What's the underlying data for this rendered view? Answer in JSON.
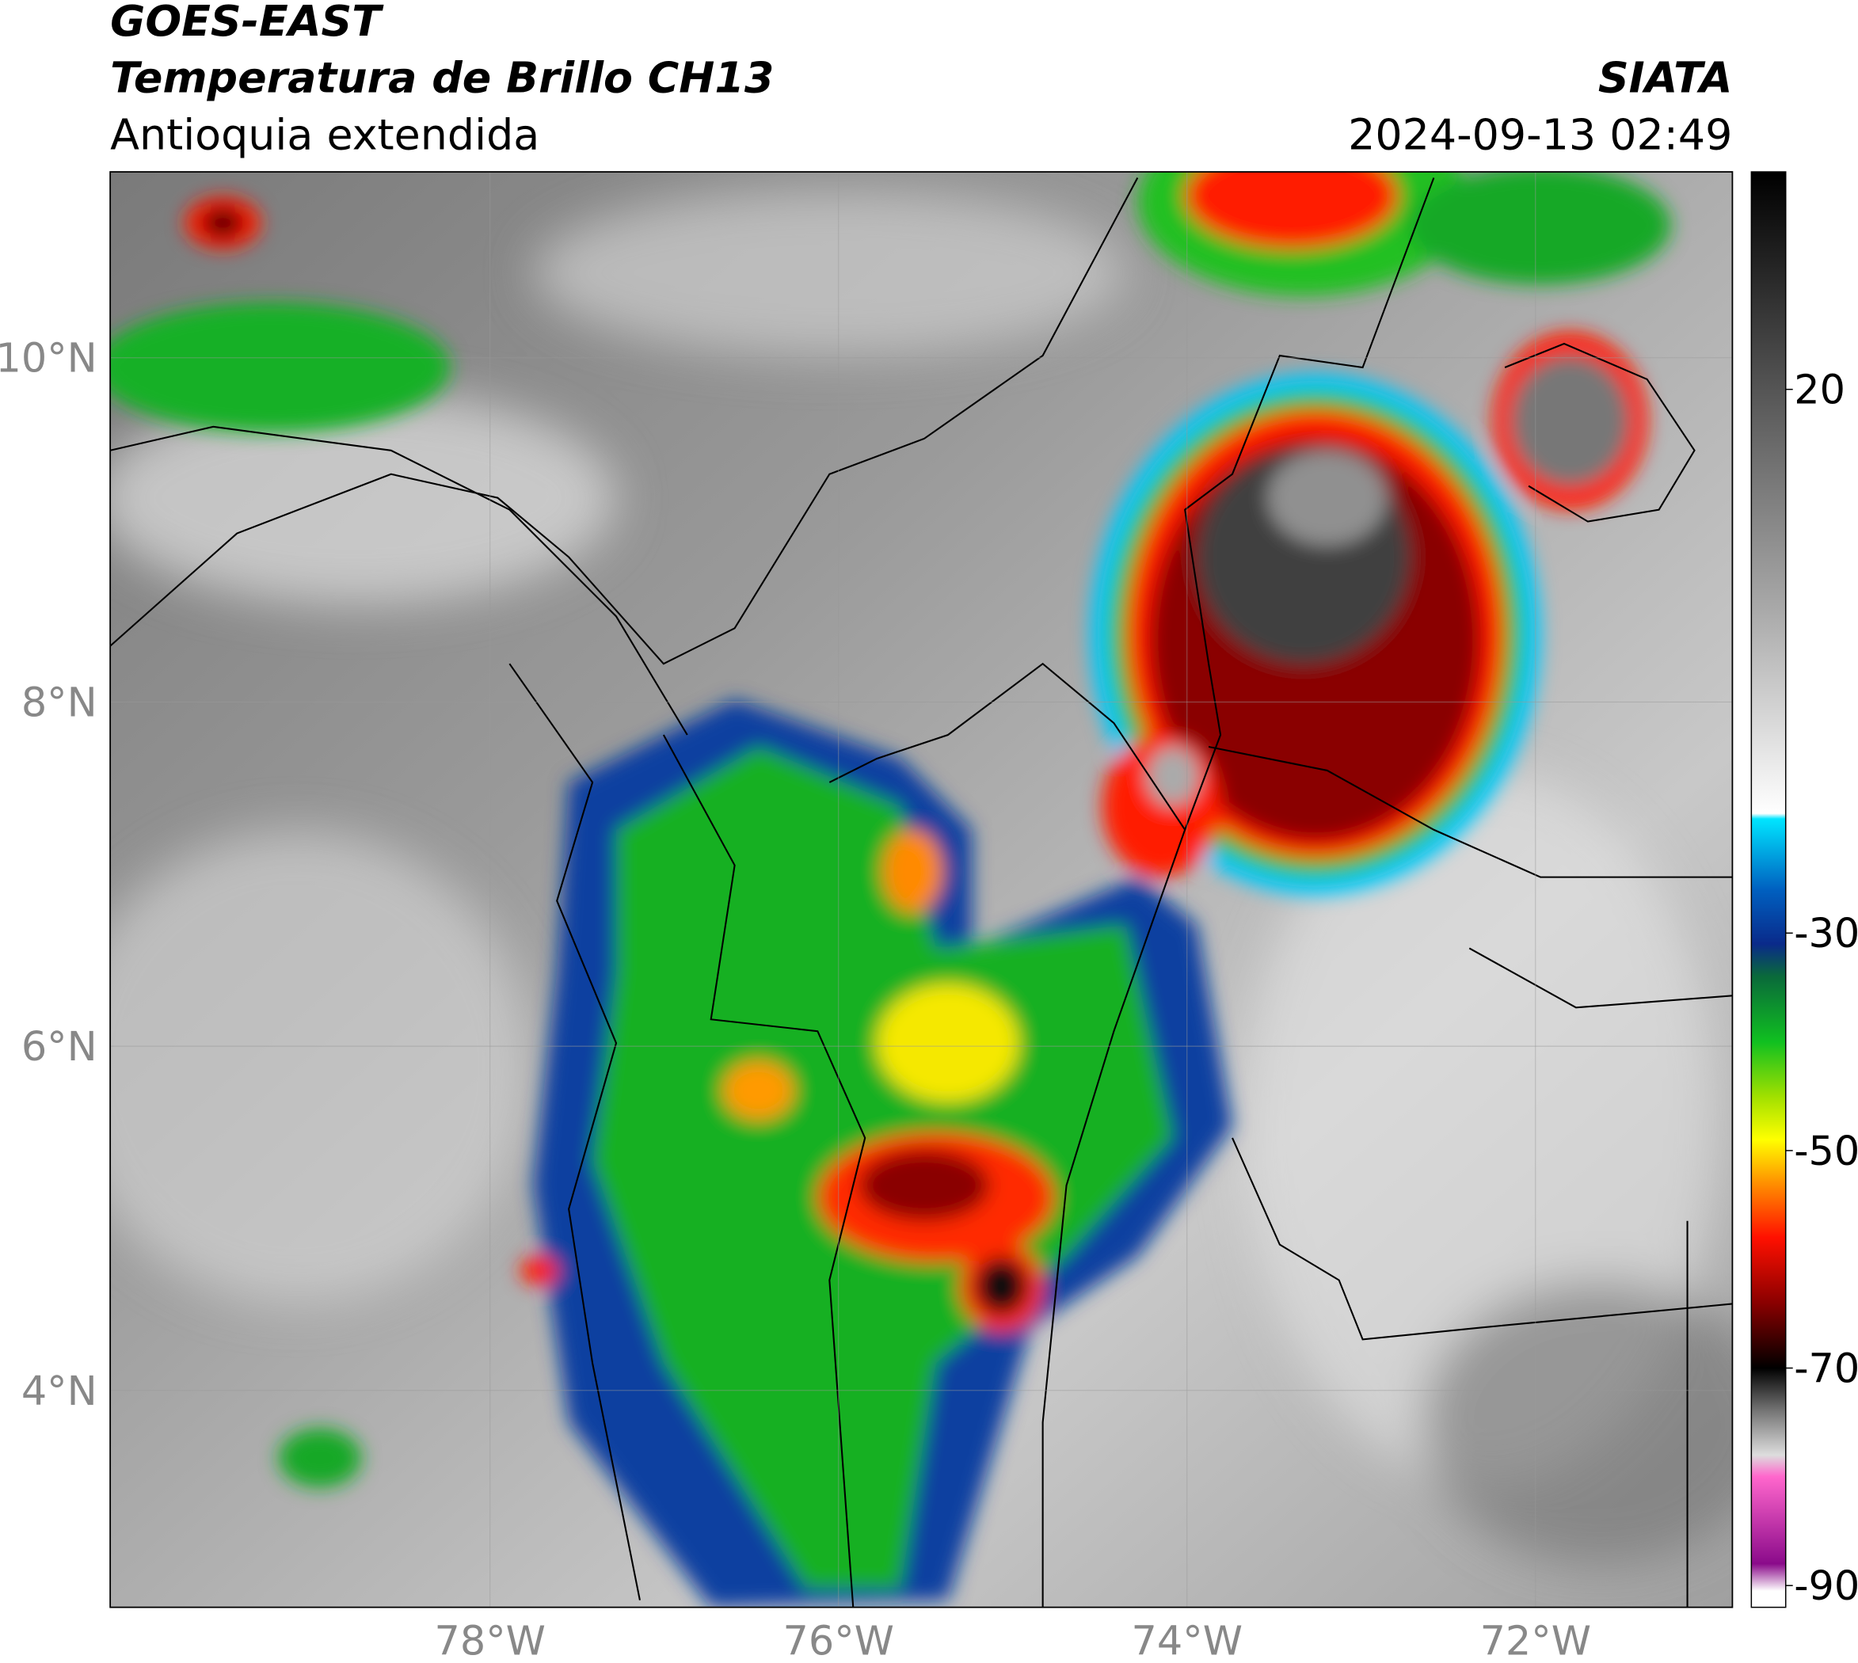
{
  "header": {
    "title": "GOES-EAST",
    "subtitle": "Temperatura de Brillo CH13",
    "region": "Antioquia extendida",
    "source": "SIATA",
    "datetime": "2024-09-13 02:49"
  },
  "map": {
    "lon_lim": [
      -80.18,
      -70.87
    ],
    "lat_lim": [
      2.74,
      11.08
    ],
    "lon_ticks": [
      {
        "value": -78,
        "label": "78°W"
      },
      {
        "value": -76,
        "label": "76°W"
      },
      {
        "value": -74,
        "label": "74°W"
      },
      {
        "value": -72,
        "label": "72°W"
      }
    ],
    "lat_ticks": [
      {
        "value": 10,
        "label": "10°N"
      },
      {
        "value": 8,
        "label": "8°N"
      },
      {
        "value": 6,
        "label": "6°N"
      },
      {
        "value": 4,
        "label": "4°N"
      }
    ],
    "grid": true
  },
  "colorbar": {
    "lim": [
      -92,
      40
    ],
    "ticks": [
      20,
      -30,
      -50,
      -70,
      -90
    ],
    "stops": [
      {
        "value": 40,
        "color": "#000000"
      },
      {
        "value": 30,
        "color": "#2a2a2a"
      },
      {
        "value": 20,
        "color": "#555555"
      },
      {
        "value": 0,
        "color": "#a8a8a8"
      },
      {
        "value": -19,
        "color": "#ffffff"
      },
      {
        "value": -19.5,
        "color": "#00e5ff"
      },
      {
        "value": -26,
        "color": "#0060c0"
      },
      {
        "value": -31,
        "color": "#0a2a8a"
      },
      {
        "value": -34,
        "color": "#0a6a3a"
      },
      {
        "value": -40,
        "color": "#10c020"
      },
      {
        "value": -45,
        "color": "#a0e000"
      },
      {
        "value": -49,
        "color": "#ffff00"
      },
      {
        "value": -53,
        "color": "#ff9000"
      },
      {
        "value": -58,
        "color": "#ff1000"
      },
      {
        "value": -64,
        "color": "#8a0000"
      },
      {
        "value": -70,
        "color": "#000000"
      },
      {
        "value": -74,
        "color": "#777777"
      },
      {
        "value": -78,
        "color": "#dddddd"
      },
      {
        "value": -80,
        "color": "#ff66cc"
      },
      {
        "value": -88,
        "color": "#8a0a8a"
      },
      {
        "value": -90.5,
        "color": "#ffffff"
      }
    ]
  }
}
